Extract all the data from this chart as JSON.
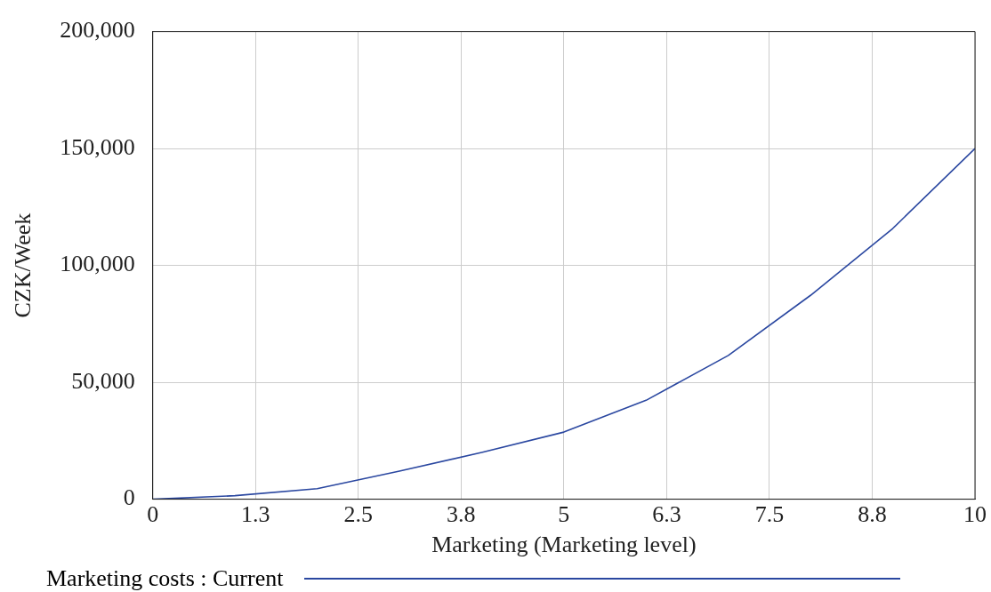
{
  "chart_data": {
    "type": "line",
    "xlabel": "Marketing (Marketing level)",
    "ylabel": "CZK/Week",
    "x": [
      0,
      1,
      2,
      3,
      4,
      5,
      6,
      7,
      8,
      9,
      10
    ],
    "series": [
      {
        "name": "Marketing costs : Current",
        "color": "#2a47a0",
        "values": [
          0,
          1500,
          4500,
          12000,
          20000,
          28700,
          42300,
          61500,
          87200,
          115800,
          150000
        ]
      }
    ],
    "xlim": [
      0,
      10
    ],
    "xticks": [
      0,
      {
        "value": 1.25,
        "label": "1.3"
      },
      2.5,
      {
        "value": 3.75,
        "label": "3.8"
      },
      5,
      {
        "value": 6.25,
        "label": "6.3"
      },
      7.5,
      {
        "value": 8.75,
        "label": "8.8"
      },
      10
    ],
    "ylim": [
      0,
      200000
    ],
    "yticks": [
      {
        "value": 0,
        "label": "0"
      },
      {
        "value": 50000,
        "label": "50,000"
      },
      {
        "value": 100000,
        "label": "100,000"
      },
      {
        "value": 150000,
        "label": "150,000"
      },
      {
        "value": 200000,
        "label": "200,000"
      }
    ],
    "grid": true,
    "legend": "bottom",
    "marker": "none",
    "line_style": "solid"
  }
}
